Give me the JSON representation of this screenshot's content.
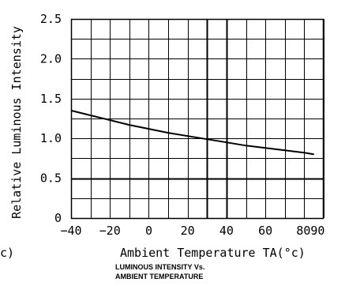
{
  "chart_data": {
    "type": "line",
    "title": "",
    "caption_lines": [
      "LUMINOUS INTENSITY Vs.",
      "AMBIENT TEMPERATURE"
    ],
    "xlabel": "Ambient Temperature TA(°c)",
    "ylabel": "Relative Luminous Intensity",
    "clipped_left_text": "c)",
    "xlim": [
      -40,
      90
    ],
    "ylim": [
      0,
      2.5
    ],
    "x_tick_labels": [
      "-40",
      "-20",
      "0",
      "20",
      "40",
      "60",
      "80",
      "90"
    ],
    "y_tick_labels": [
      "0",
      "0.5",
      "1.0",
      "1.5",
      "2.0",
      "2.5"
    ],
    "grid": true,
    "series": [
      {
        "x": [
          -40,
          -30,
          -20,
          -10,
          0,
          10,
          20,
          30,
          40,
          50,
          60,
          70,
          80,
          85
        ],
        "y": [
          1.35,
          1.29,
          1.23,
          1.17,
          1.12,
          1.07,
          1.03,
          0.99,
          0.95,
          0.91,
          0.88,
          0.85,
          0.82,
          0.8
        ]
      }
    ]
  }
}
